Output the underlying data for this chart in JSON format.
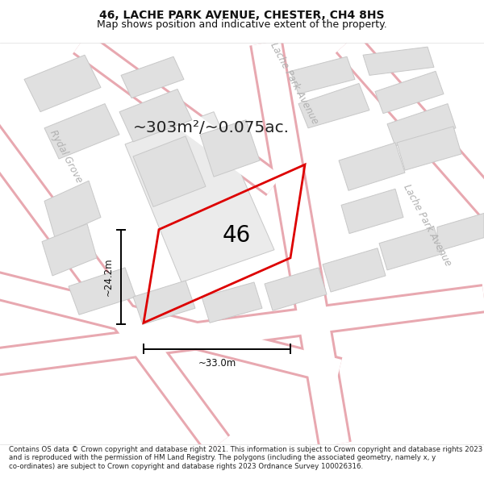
{
  "title": "46, LACHE PARK AVENUE, CHESTER, CH4 8HS",
  "subtitle": "Map shows position and indicative extent of the property.",
  "area_text": "~303m²/~0.075ac.",
  "label_46": "46",
  "dim_width": "~33.0m",
  "dim_height": "~24.2m",
  "street_label_top": "Lache Park Avenue",
  "street_label_right": "Lache Park Avenue",
  "street_label_left": "Rydal Grove",
  "footer": "Contains OS data © Crown copyright and database right 2021. This information is subject to Crown copyright and database rights 2023 and is reproduced with the permission of HM Land Registry. The polygons (including the associated geometry, namely x, y co-ordinates) are subject to Crown copyright and database rights 2023 Ordnance Survey 100026316.",
  "bg_color": "#f7f7f7",
  "road_fill": "#ffffff",
  "road_outline": "#e8a8b0",
  "building_fill": "#e0e0e0",
  "building_edge": "#c8c8c8",
  "plot_color": "#dd0000",
  "title_color": "#111111",
  "street_label_color": "#b0b0b0",
  "dim_color": "#111111",
  "area_color": "#222222"
}
